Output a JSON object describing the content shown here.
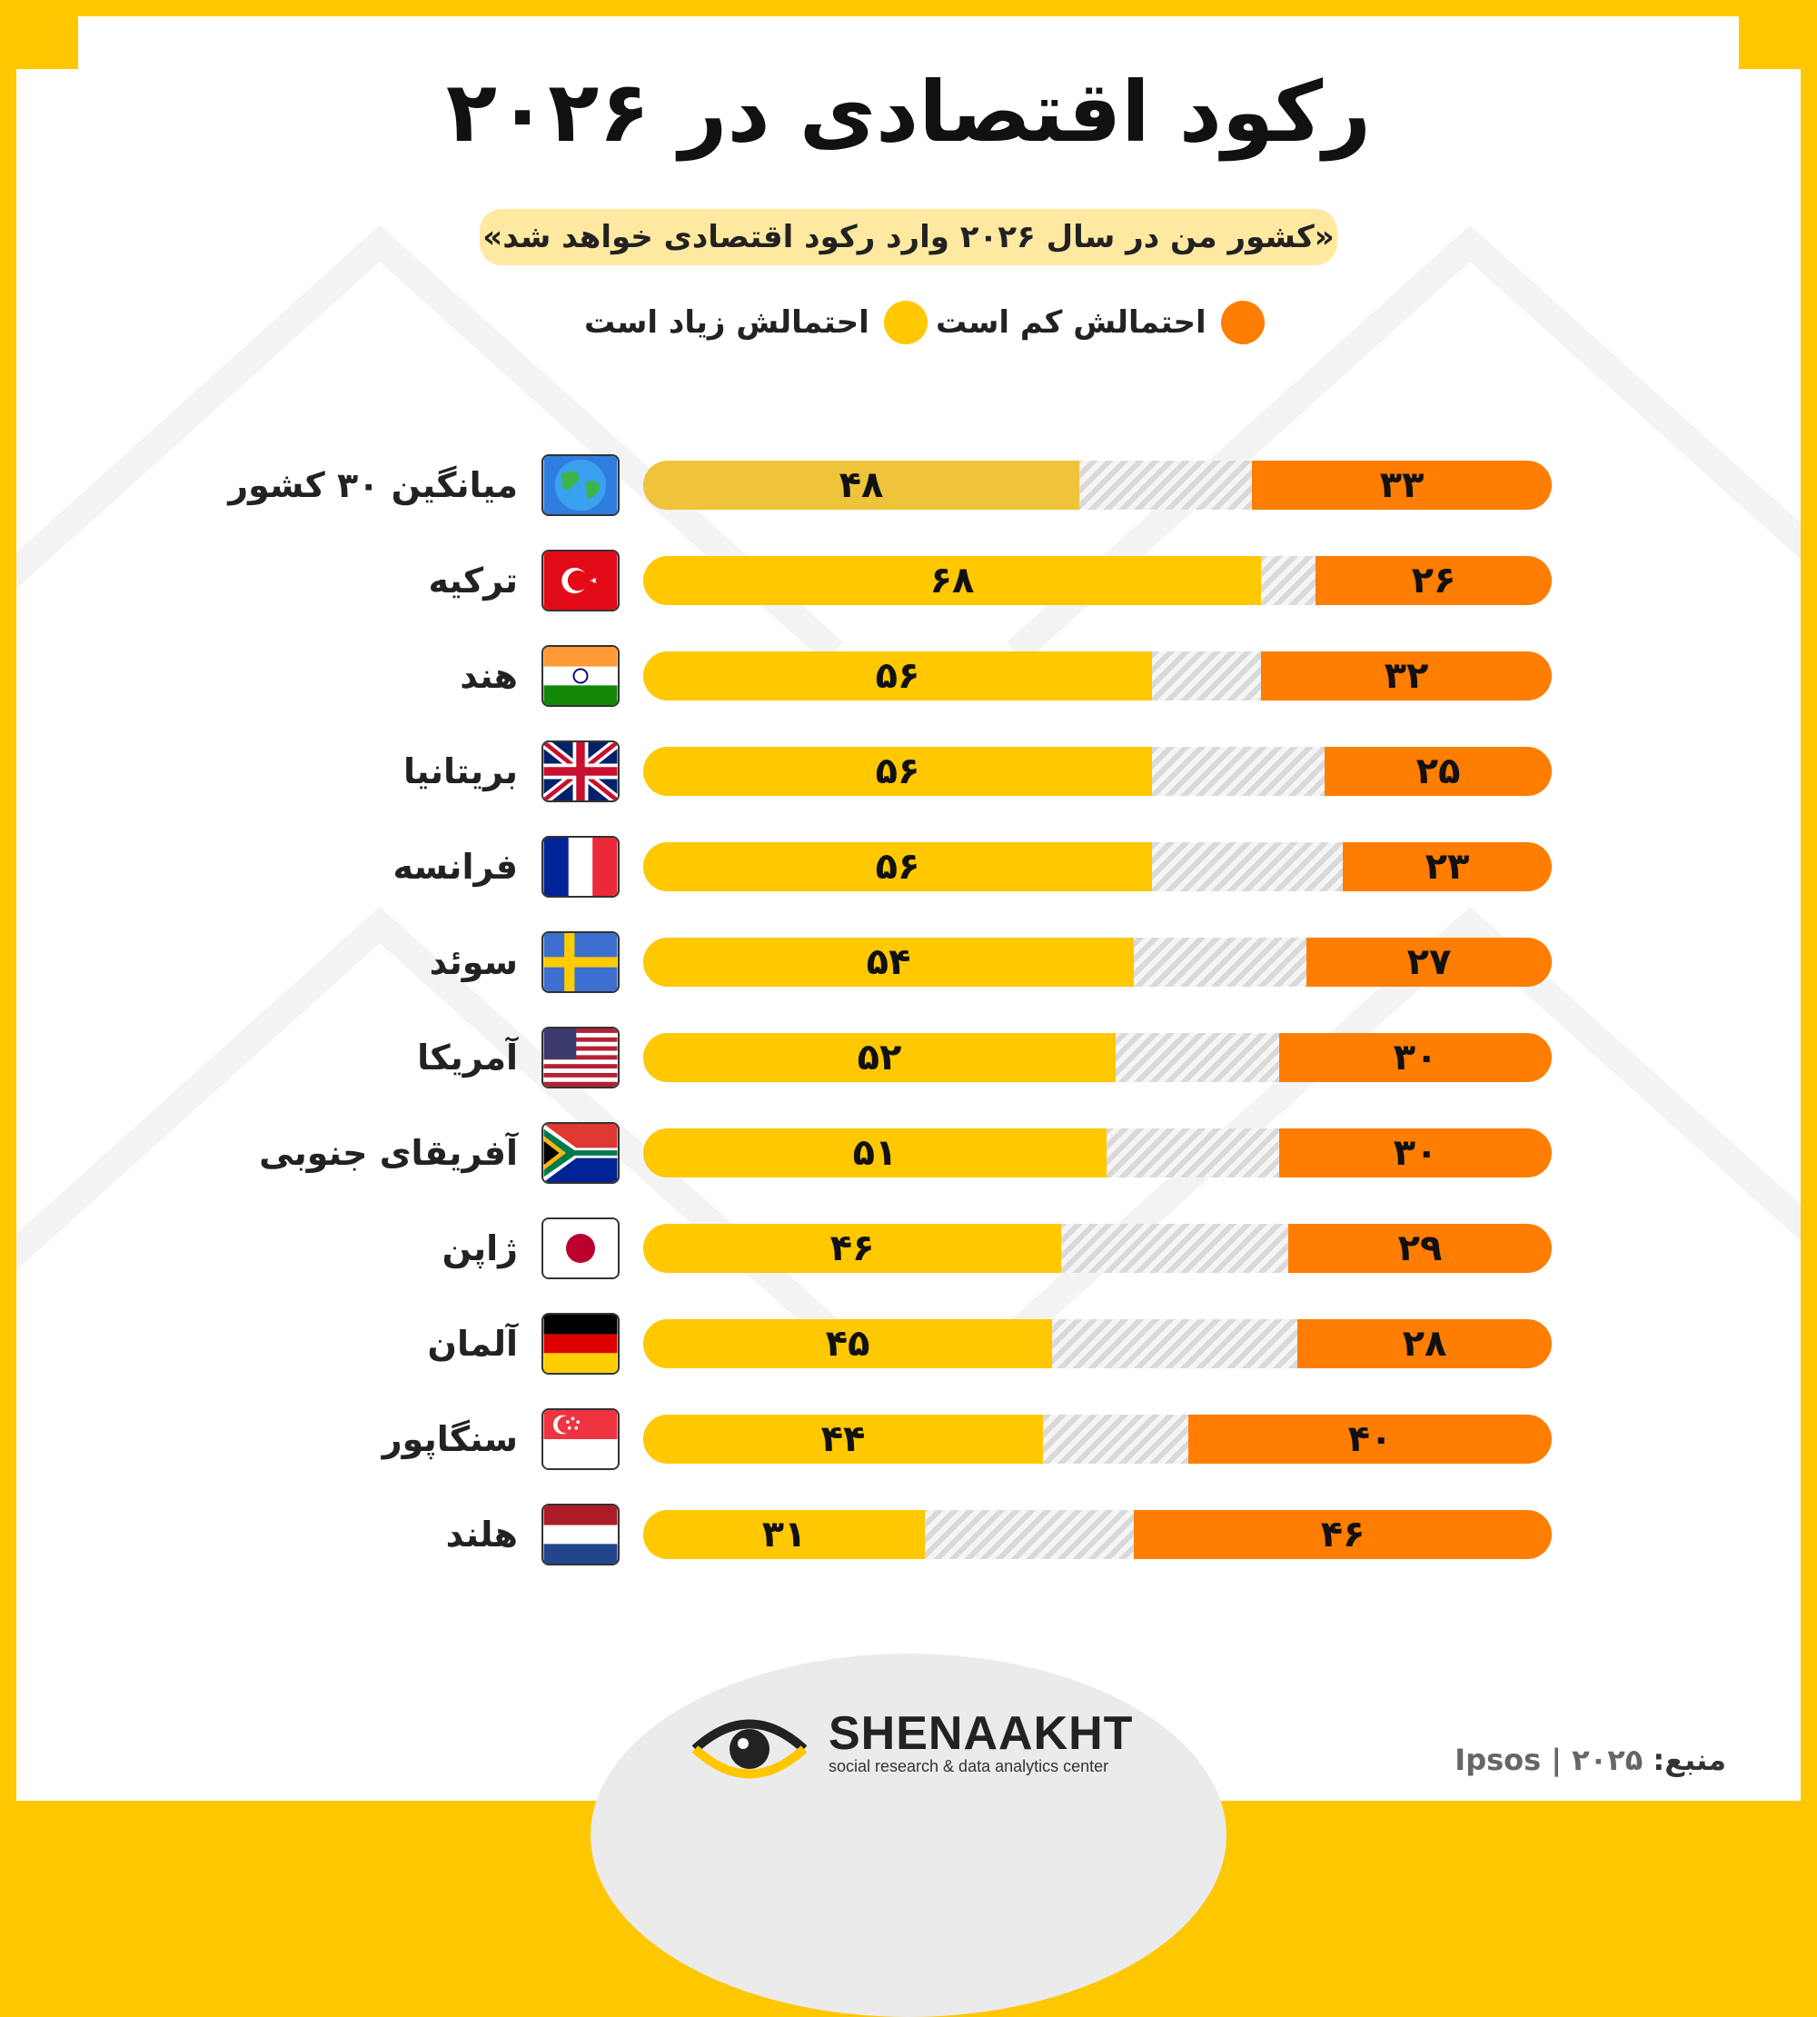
{
  "title": "رکود اقتصادی در ۲۰۲۶",
  "subtitle": "«کشور من در سال ۲۰۲۶ وارد رکود اقتصادی خواهد شد»",
  "legend": {
    "low": "احتمالش کم است",
    "high": "احتمالش زیاد است"
  },
  "colors": {
    "high": "#ffc800",
    "high_average": "#f0c43a",
    "low": "#ff7d00",
    "frame": "#ffc700"
  },
  "chart_data": {
    "type": "bar",
    "orientation": "horizontal-stacked",
    "xlim": [
      0,
      100
    ],
    "categories": [
      "میانگین ۳۰ کشور",
      "ترکیه",
      "هند",
      "بریتانیا",
      "فرانسه",
      "سوئد",
      "آمریکا",
      "آفریقای جنوبی",
      "ژاپن",
      "آلمان",
      "سنگاپور",
      "هلند"
    ],
    "category_icons": [
      "globe-icon",
      "turkey-flag-icon",
      "india-flag-icon",
      "uk-flag-icon",
      "france-flag-icon",
      "sweden-flag-icon",
      "usa-flag-icon",
      "south-africa-flag-icon",
      "japan-flag-icon",
      "germany-flag-icon",
      "singapore-flag-icon",
      "netherlands-flag-icon"
    ],
    "series": [
      {
        "name": "احتمالش زیاد است",
        "values": [
          48,
          68,
          56,
          56,
          56,
          54,
          52,
          51,
          46,
          45,
          44,
          31
        ],
        "labels": [
          "۴۸",
          "۶۸",
          "۵۶",
          "۵۶",
          "۵۶",
          "۵۴",
          "۵۲",
          "۵۱",
          "۴۶",
          "۴۵",
          "۴۴",
          "۳۱"
        ]
      },
      {
        "name": "احتمالش کم است",
        "values": [
          33,
          26,
          32,
          25,
          23,
          27,
          30,
          30,
          29,
          28,
          40,
          46
        ],
        "labels": [
          "۳۳",
          "۲۶",
          "۳۲",
          "۲۵",
          "۲۳",
          "۲۷",
          "۳۰",
          "۳۰",
          "۲۹",
          "۲۸",
          "۴۰",
          "۴۶"
        ]
      }
    ]
  },
  "brand": {
    "name": "SHENAAKHT",
    "tagline": "social research & data analytics center"
  },
  "source": {
    "label": "منبع:",
    "value": "Ipsos | ۲۰۲۵"
  }
}
